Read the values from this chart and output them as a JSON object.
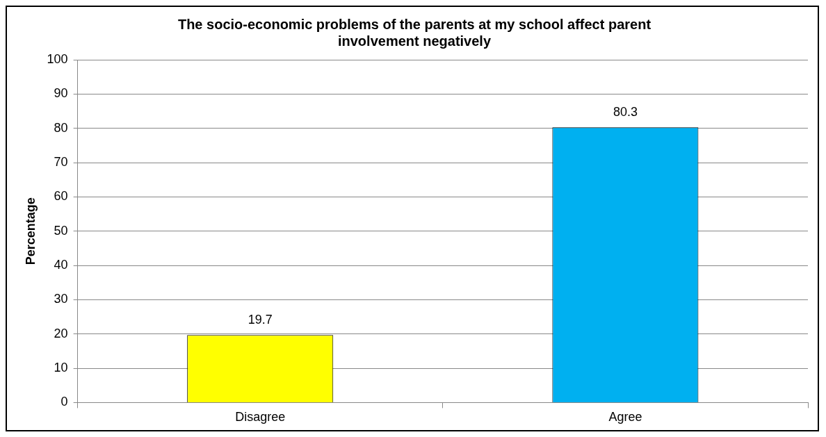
{
  "chart_data": {
    "type": "bar",
    "title": "The socio-economic problems of the parents at my school affect parent involvement negatively",
    "ylabel": "Percentage",
    "categories": [
      "Disagree",
      "Agree"
    ],
    "values": [
      19.7,
      80.3
    ],
    "colors": [
      "#ffff00",
      "#00b0f0"
    ],
    "ylim": [
      0,
      100
    ],
    "yticks": [
      0,
      10,
      20,
      30,
      40,
      50,
      60,
      70,
      80,
      90,
      100
    ],
    "grid": "y",
    "data_labels": true,
    "legend": false
  }
}
